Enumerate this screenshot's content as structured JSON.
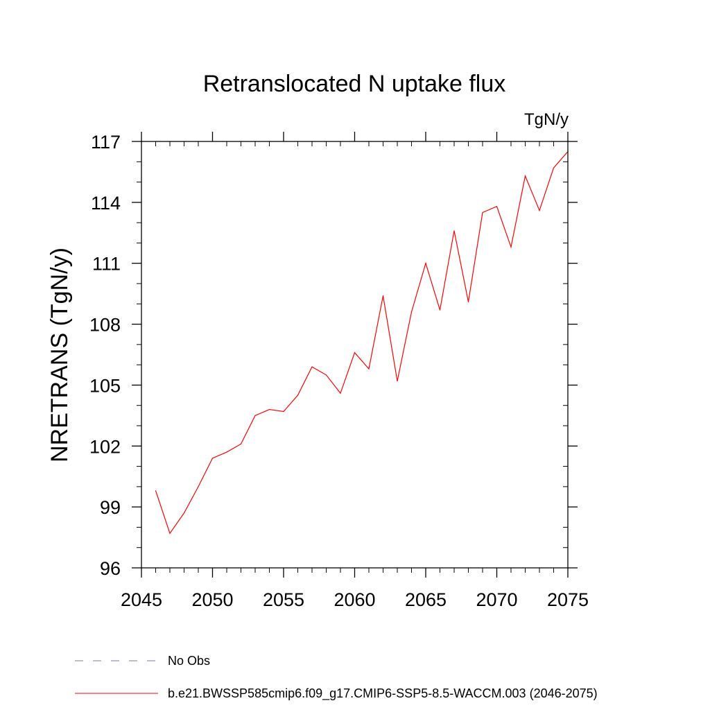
{
  "chart_data": {
    "type": "line",
    "title": "Retranslocated N uptake flux",
    "units": "TgN/y",
    "ylabel": "NRETRANS  (TgN/y)",
    "xlabel": "",
    "xlim": [
      2045,
      2075
    ],
    "ylim": [
      96,
      117
    ],
    "xticks": [
      2045,
      2050,
      2055,
      2060,
      2065,
      2070,
      2075
    ],
    "yticks": [
      96,
      99,
      102,
      105,
      108,
      111,
      114,
      117
    ],
    "xtick_labels": [
      "2045",
      "2050",
      "2055",
      "2060",
      "2065",
      "2070",
      "2075"
    ],
    "ytick_labels": [
      "96",
      "99",
      "102",
      "105",
      "108",
      "111",
      "114",
      "117"
    ],
    "x_minor_step": 1,
    "y_minor_step": 1,
    "series": [
      {
        "name": "b.e21.BWSSP585cmip6.f09_g17.CMIP6-SSP5-8.5-WACCM.003 (2046-2075)",
        "color": "#ff0000",
        "style": "solid",
        "x": [
          2046,
          2047,
          2048,
          2049,
          2050,
          2051,
          2052,
          2053,
          2054,
          2055,
          2056,
          2057,
          2058,
          2059,
          2060,
          2061,
          2062,
          2063,
          2064,
          2065,
          2066,
          2067,
          2068,
          2069,
          2070,
          2071,
          2072,
          2073,
          2074,
          2075
        ],
        "values": [
          99.8,
          97.7,
          98.7,
          100.0,
          101.4,
          101.7,
          102.1,
          103.5,
          103.8,
          103.7,
          104.5,
          105.9,
          105.5,
          104.6,
          106.6,
          105.8,
          109.4,
          105.2,
          108.6,
          111.0,
          108.7,
          112.6,
          109.1,
          113.5,
          113.8,
          111.8,
          115.3,
          113.6,
          115.7,
          116.5
        ]
      }
    ],
    "legend": {
      "placement": "bottom-left",
      "entries": [
        {
          "label": "No Obs",
          "color": "#7777bb",
          "style": "dashed"
        },
        {
          "label": "b.e21.BWSSP585cmip6.f09_g17.CMIP6-SSP5-8.5-WACCM.003 (2046-2075)",
          "color": "#ff0000",
          "style": "solid"
        }
      ]
    }
  }
}
